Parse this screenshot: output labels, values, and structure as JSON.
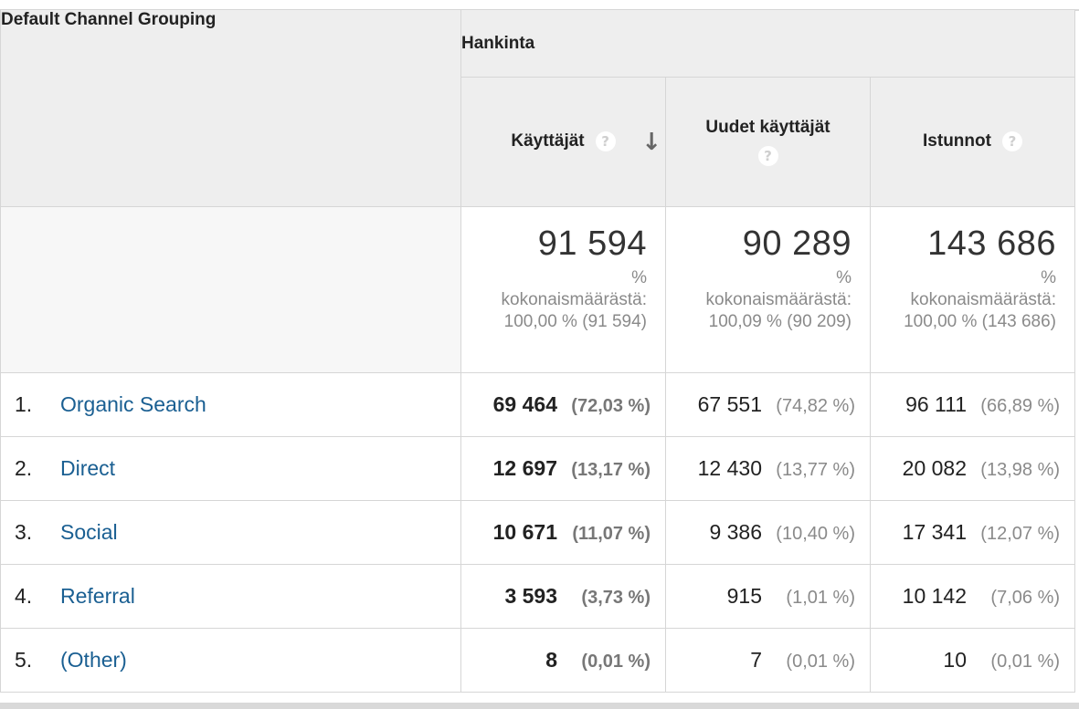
{
  "table": {
    "dimension_header": "Default Channel Grouping",
    "group_header": "Hankinta",
    "metrics": [
      {
        "label": "Käyttäjät",
        "help_icon": "?",
        "sort_icon": "↓"
      },
      {
        "label": "Uudet käyttäjät",
        "help_icon": "?"
      },
      {
        "label": "Istunnot",
        "help_icon": "?"
      }
    ],
    "totals": [
      {
        "value": "91 594",
        "pct_sign": "%",
        "label": "kokonaismäärästä:",
        "detail": "100,00 % (91 594)"
      },
      {
        "value": "90 289",
        "pct_sign": "%",
        "label": "kokonaismäärästä:",
        "detail": "100,09 % (90 209)"
      },
      {
        "value": "143 686",
        "pct_sign": "%",
        "label": "kokonaismäärästä:",
        "detail": "100,00 % (143 686)"
      }
    ],
    "rows": [
      {
        "index": "1.",
        "name": "Organic Search",
        "users": "69 464",
        "users_pct": "(72,03 %)",
        "new_users": "67 551",
        "new_users_pct": "(74,82 %)",
        "sessions": "96 111",
        "sessions_pct": "(66,89 %)"
      },
      {
        "index": "2.",
        "name": "Direct",
        "users": "12 697",
        "users_pct": "(13,17 %)",
        "new_users": "12 430",
        "new_users_pct": "(13,77 %)",
        "sessions": "20 082",
        "sessions_pct": "(13,98 %)"
      },
      {
        "index": "3.",
        "name": "Social",
        "users": "10 671",
        "users_pct": "(11,07 %)",
        "new_users": "9 386",
        "new_users_pct": "(10,40 %)",
        "sessions": "17 341",
        "sessions_pct": "(12,07 %)"
      },
      {
        "index": "4.",
        "name": "Referral",
        "users": "3 593",
        "users_pct": "(3,73 %)",
        "new_users": "915",
        "new_users_pct": "(1,01 %)",
        "sessions": "10 142",
        "sessions_pct": "(7,06 %)"
      },
      {
        "index": "5.",
        "name": "(Other)",
        "users": "8",
        "users_pct": "(0,01 %)",
        "new_users": "7",
        "new_users_pct": "(0,01 %)",
        "sessions": "10",
        "sessions_pct": "(0,01 %)"
      }
    ]
  },
  "colors": {
    "link": "#1a5f92",
    "header_bg": "#eeeeee",
    "border": "#d6d6d6",
    "muted": "#8a8a8a"
  }
}
